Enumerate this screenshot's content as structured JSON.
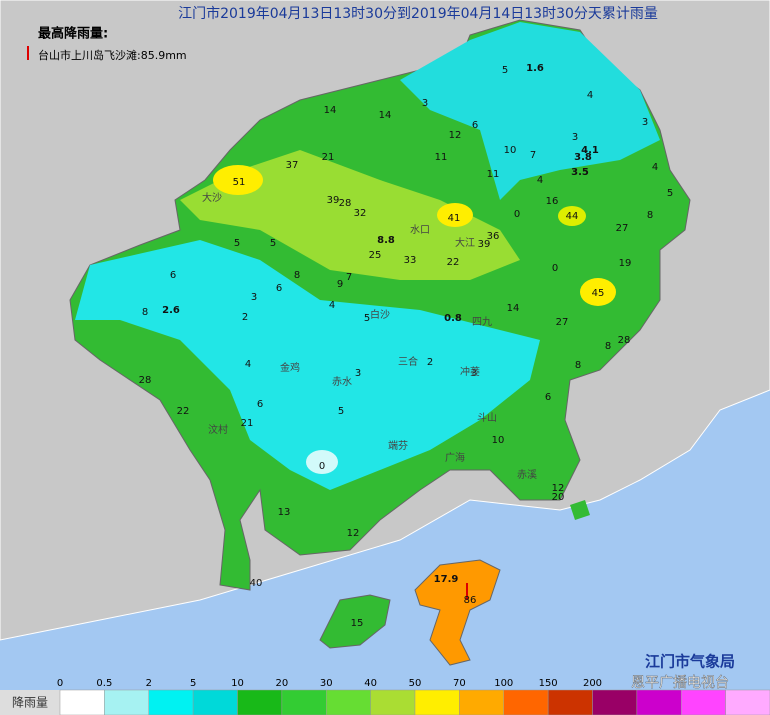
{
  "title": "江门市2019年04月13日13时30分到2019年04月14日13时30分天累计雨量",
  "max_label": "最高降雨量:",
  "max_station": "台山市上川岛飞沙滩:85.9mm",
  "map_values": [
    1.6,
    5,
    4,
    3,
    14,
    14,
    12,
    6,
    3,
    3,
    4.1,
    3.8,
    10,
    7,
    37,
    21,
    11,
    11,
    4,
    3.5,
    4,
    51,
    39,
    28,
    32,
    41,
    0,
    16,
    44,
    5,
    8,
    27,
    8.8,
    5,
    5,
    39,
    36,
    25,
    33,
    22,
    0,
    19,
    6,
    8,
    7,
    9,
    3,
    6,
    45,
    2.6,
    8,
    4,
    5,
    0.8,
    14,
    27,
    2,
    28,
    8,
    4,
    2,
    3,
    3,
    8,
    28,
    6,
    22,
    5,
    6,
    21,
    10,
    0,
    12,
    20,
    13,
    12,
    40,
    17.9,
    86,
    15
  ],
  "place_names": [
    "大沙",
    "水口",
    "大江",
    "白沙",
    "四九",
    "三合",
    "冲蒌",
    "赤水",
    "金鸡",
    "端芬",
    "斗山",
    "广海",
    "赤溪",
    "汶村"
  ],
  "legend": {
    "title": "降雨量",
    "ticks": [
      0,
      0.5,
      2,
      5,
      10,
      20,
      30,
      40,
      50,
      70,
      100,
      150,
      200
    ],
    "colors": [
      "#ffffff",
      "#a6f2f2",
      "#00f2f2",
      "#00d9d9",
      "#18b918",
      "#33cc33",
      "#66dd33",
      "#aadd33",
      "#ffee00",
      "#ffaa00",
      "#ff6600",
      "#cc3300",
      "#990066",
      "#cc00cc",
      "#ff44ff",
      "#ffaaff"
    ]
  },
  "source": "江门市气象局",
  "watermark": "恩平广播电视台"
}
